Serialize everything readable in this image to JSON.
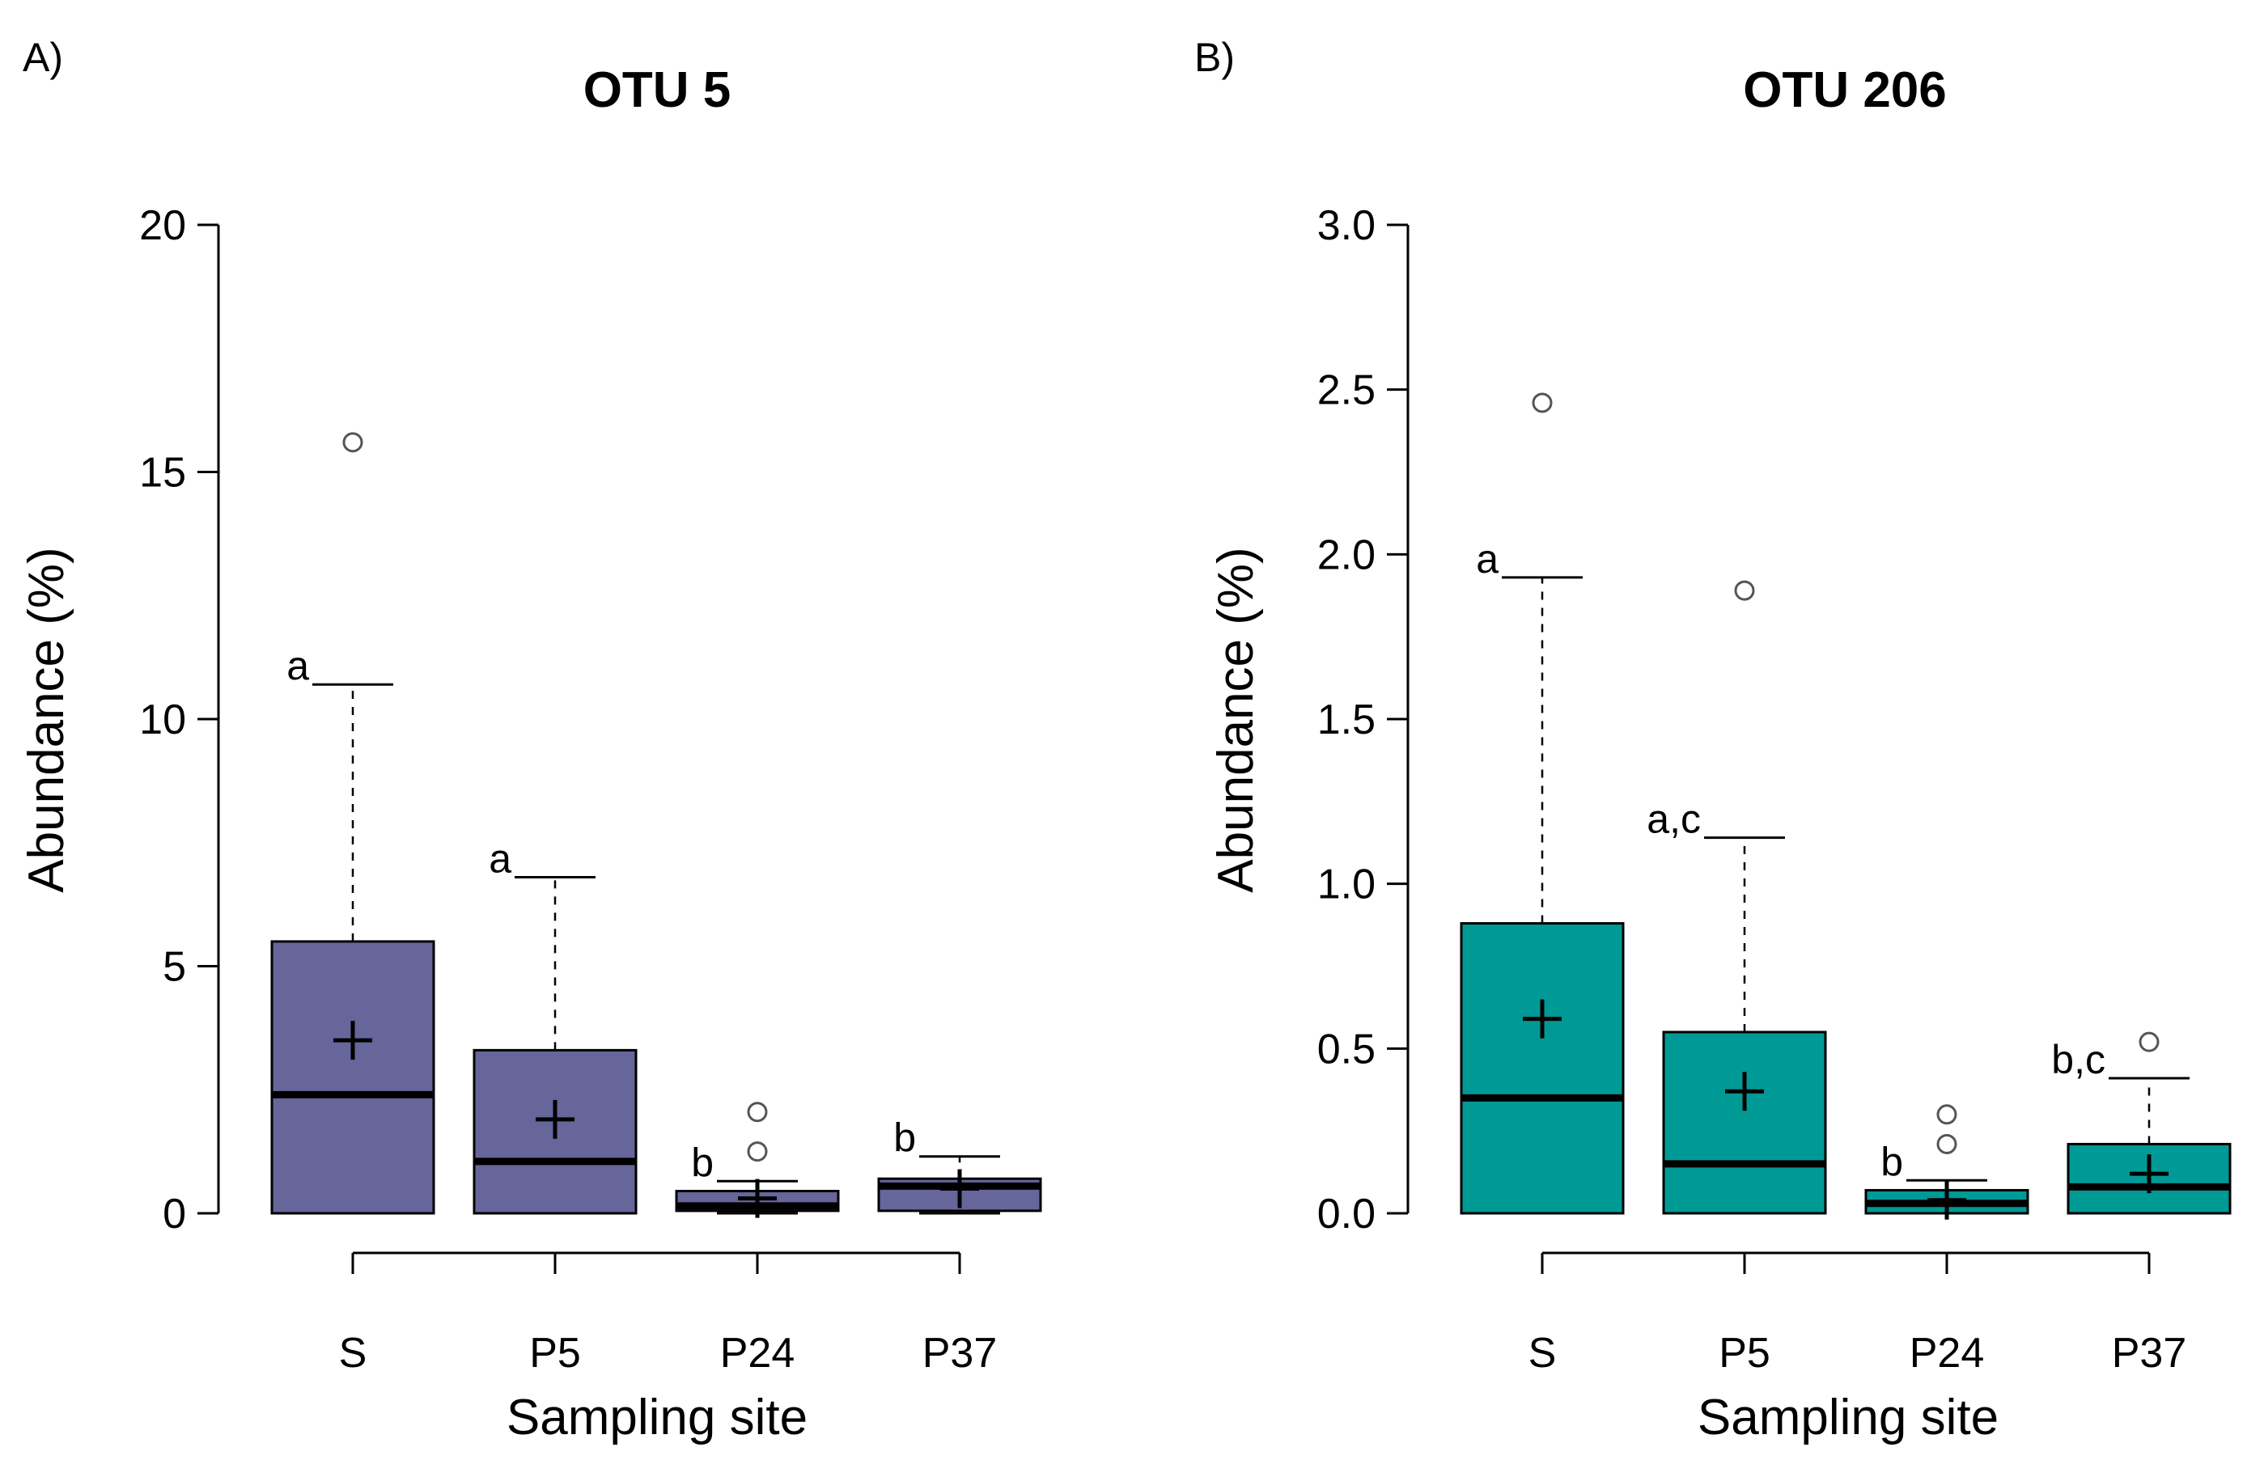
{
  "chart_data": [
    {
      "type": "box",
      "panel_label": "A)",
      "title": "OTU 5",
      "xlabel": "Sampling site",
      "ylabel": "Abundance (%)",
      "ylim": [
        0,
        20
      ],
      "yticks": [
        0,
        5,
        10,
        15,
        20
      ],
      "box_color": "#66669b",
      "categories": [
        "S",
        "P5",
        "P24",
        "P37"
      ],
      "boxes": [
        {
          "q1": 0.0,
          "median": 2.4,
          "q3": 5.5,
          "whisker_low": 0.0,
          "whisker_high": 10.7,
          "mean": 3.5,
          "outliers": [
            15.6
          ],
          "letter": "a"
        },
        {
          "q1": 0.0,
          "median": 1.05,
          "q3": 3.3,
          "whisker_low": 0.0,
          "whisker_high": 6.8,
          "mean": 1.9,
          "outliers": [],
          "letter": "a"
        },
        {
          "q1": 0.05,
          "median": 0.15,
          "q3": 0.45,
          "whisker_low": 0.0,
          "whisker_high": 0.65,
          "mean": 0.3,
          "outliers": [
            1.25,
            2.05
          ],
          "letter": "b"
        },
        {
          "q1": 0.05,
          "median": 0.55,
          "q3": 0.7,
          "whisker_low": 0.0,
          "whisker_high": 1.15,
          "mean": 0.5,
          "outliers": [],
          "letter": "b"
        }
      ]
    },
    {
      "type": "box",
      "panel_label": "B)",
      "title": "OTU 206",
      "xlabel": "Sampling site",
      "ylabel": "Abundance (%)",
      "ylim": [
        0,
        3.0
      ],
      "yticks": [
        "0.0",
        "0.5",
        "1.0",
        "1.5",
        "2.0",
        "2.5",
        "3.0"
      ],
      "box_color": "#009a96",
      "categories": [
        "S",
        "P5",
        "P24",
        "P37"
      ],
      "boxes": [
        {
          "q1": 0.0,
          "median": 0.35,
          "q3": 0.88,
          "whisker_low": 0.0,
          "whisker_high": 1.93,
          "mean": 0.59,
          "outliers": [
            2.46
          ],
          "letter": "a"
        },
        {
          "q1": 0.0,
          "median": 0.15,
          "q3": 0.55,
          "whisker_low": 0.0,
          "whisker_high": 1.14,
          "mean": 0.37,
          "outliers": [
            1.89
          ],
          "letter": "a,c"
        },
        {
          "q1": 0.0,
          "median": 0.03,
          "q3": 0.07,
          "whisker_low": 0.0,
          "whisker_high": 0.1,
          "mean": 0.04,
          "outliers": [
            0.21,
            0.3
          ],
          "letter": "b"
        },
        {
          "q1": 0.0,
          "median": 0.08,
          "q3": 0.21,
          "whisker_low": 0.0,
          "whisker_high": 0.41,
          "mean": 0.12,
          "outliers": [
            0.52
          ],
          "letter": "b,c"
        }
      ]
    }
  ]
}
